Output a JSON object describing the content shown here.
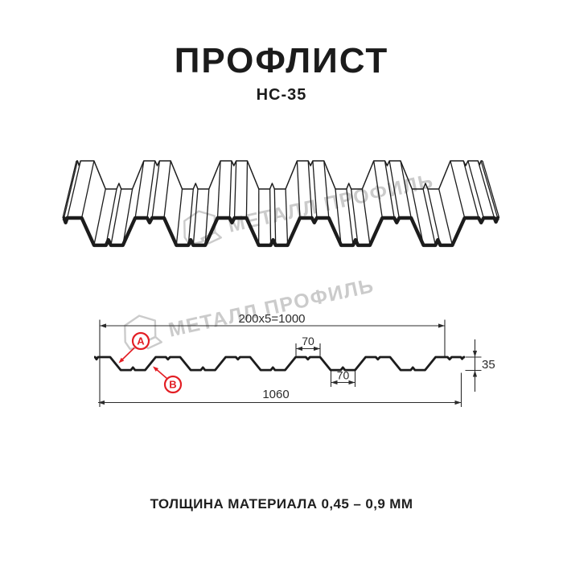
{
  "header": {
    "title": "ПРОФЛИСТ",
    "subtitle": "НС-35"
  },
  "watermark": {
    "brand": "МЕТАЛЛ ПРОФИЛЬ",
    "logo_icon": "metal-profile-logo"
  },
  "section": {
    "dimensions": {
      "module_width": "200x5=1000",
      "crest_width": "70",
      "valley_width": "70",
      "profile_height": "35",
      "overall_width": "1060"
    },
    "markers": {
      "a": "A",
      "b": "B"
    }
  },
  "footer": {
    "thickness_note": "ТОЛЩИНА МАТЕРИАЛА 0,45 – 0,9 ММ"
  },
  "colors": {
    "accent_red": "#e31e24",
    "line_black": "#1c1c1c",
    "dim_gray": "#2b2b2b",
    "watermark_gray": "#c9c9c9"
  }
}
